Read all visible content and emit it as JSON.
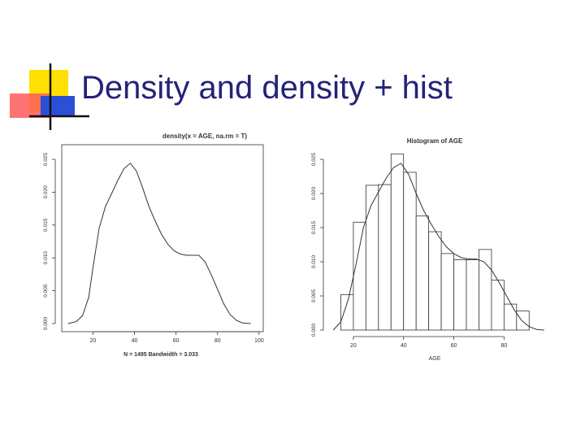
{
  "slide": {
    "title": "Density and density + hist",
    "colors": {
      "title": "#23237a",
      "deco_yellow": "#ffe000",
      "deco_red": "#ff5a5a",
      "deco_blue": "#2c4fd8",
      "line": "#333333"
    }
  },
  "chart_data": [
    {
      "type": "line",
      "title": "density(x = AGE, na.rm = T)",
      "xlabel": "N = 1495   Bandwidth = 3.033",
      "ylabel": "",
      "xlim": [
        5,
        102
      ],
      "ylim": [
        0,
        0.025
      ],
      "x_ticks": [
        "20",
        "40",
        "60",
        "80",
        "100"
      ],
      "y_ticks": [
        "0.000",
        "0.005",
        "0.010",
        "0.015",
        "0.020",
        "0.025"
      ],
      "grid": false,
      "series": [
        {
          "x": [
            8,
            12,
            15,
            18,
            20,
            23,
            26,
            29,
            32,
            35,
            38,
            41,
            44,
            47,
            50,
            53,
            56,
            59,
            62,
            65,
            68,
            71,
            74,
            77,
            80,
            83,
            86,
            89,
            92,
            96
          ],
          "y": [
            0.0,
            0.0003,
            0.0012,
            0.004,
            0.0085,
            0.0145,
            0.0178,
            0.0198,
            0.0218,
            0.0236,
            0.0244,
            0.0232,
            0.0206,
            0.0178,
            0.0156,
            0.0136,
            0.0121,
            0.0111,
            0.0106,
            0.0104,
            0.0104,
            0.0104,
            0.0094,
            0.0074,
            0.0052,
            0.003,
            0.0014,
            0.0005,
            0.0001,
            0.0
          ]
        }
      ]
    },
    {
      "type": "bar",
      "title": "Histogram of AGE",
      "xlabel": "AGE",
      "ylabel": "",
      "xlim": [
        10,
        98
      ],
      "ylim": [
        0,
        0.025
      ],
      "x_ticks": [
        "20",
        "40",
        "60",
        "80"
      ],
      "y_ticks": [
        "0.000",
        "0.005",
        "0.010",
        "0.015",
        "0.020",
        "0.025"
      ],
      "grid": false,
      "bins": {
        "edges": [
          15,
          20,
          25,
          30,
          35,
          40,
          45,
          50,
          55,
          60,
          65,
          70,
          75,
          80,
          85,
          90
        ],
        "values": [
          0.0052,
          0.0158,
          0.0212,
          0.0213,
          0.0258,
          0.0231,
          0.0167,
          0.0144,
          0.0112,
          0.0103,
          0.0103,
          0.0118,
          0.0073,
          0.0038,
          0.0028
        ]
      },
      "series": [
        {
          "x": [
            12,
            15,
            18,
            21,
            24,
            27,
            30,
            33,
            36,
            39,
            42,
            45,
            48,
            51,
            54,
            57,
            60,
            63,
            66,
            69,
            72,
            75,
            78,
            81,
            84,
            87,
            90,
            93,
            96
          ],
          "y": [
            0.0,
            0.0012,
            0.0045,
            0.0095,
            0.015,
            0.0182,
            0.0202,
            0.0222,
            0.0238,
            0.0244,
            0.0228,
            0.02,
            0.0175,
            0.0155,
            0.0137,
            0.0122,
            0.0112,
            0.0106,
            0.0104,
            0.0104,
            0.01,
            0.0088,
            0.007,
            0.005,
            0.003,
            0.0014,
            0.0005,
            0.0001,
            0.0
          ]
        }
      ]
    }
  ]
}
